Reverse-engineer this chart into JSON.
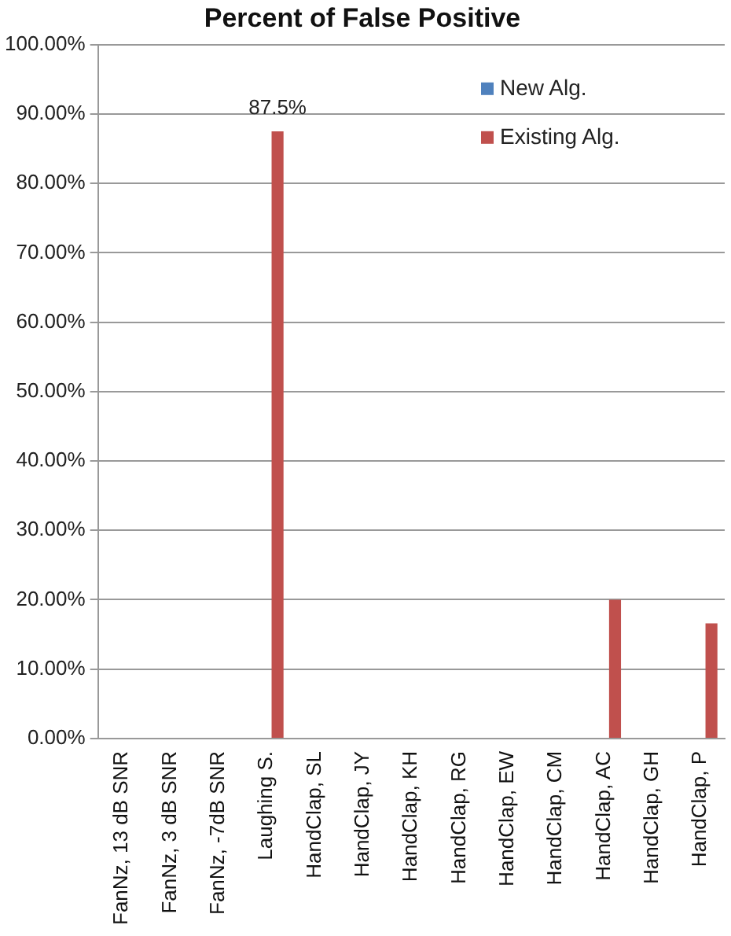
{
  "chart_data": {
    "type": "bar",
    "title": "Percent of False Positive",
    "categories": [
      "FanNz, 13 dB SNR",
      "FanNz, 3 dB SNR",
      "FanNz, -7dB SNR",
      "Laughing S.",
      "HandClap, SL",
      "HandClap, JY",
      "HandClap, KH",
      "HandClap, RG",
      "HandClap, EW",
      "HandClap, CM",
      "HandClap, AC",
      "HandClap, GH",
      "HandClap, P"
    ],
    "series": [
      {
        "name": "New Alg.",
        "color": "#4f81bd",
        "values": [
          0,
          0,
          0,
          0,
          0,
          0,
          0,
          0,
          0,
          0,
          0,
          0,
          0
        ]
      },
      {
        "name": "Existing Alg.",
        "color": "#c0504d",
        "values": [
          0,
          0,
          0,
          87.5,
          0,
          0,
          0,
          0,
          0,
          0,
          20,
          0,
          16.6
        ],
        "value_labels": [
          null,
          null,
          null,
          "87.5%",
          null,
          null,
          null,
          null,
          null,
          null,
          null,
          null,
          null
        ]
      }
    ],
    "ylim": [
      0,
      100
    ],
    "yticks": [
      {
        "value": 0,
        "label": "0.00%"
      },
      {
        "value": 10,
        "label": "10.00%"
      },
      {
        "value": 20,
        "label": "20.00%"
      },
      {
        "value": 30,
        "label": "30.00%"
      },
      {
        "value": 40,
        "label": "40.00%"
      },
      {
        "value": 50,
        "label": "50.00%"
      },
      {
        "value": 60,
        "label": "60.00%"
      },
      {
        "value": 70,
        "label": "70.00%"
      },
      {
        "value": 80,
        "label": "80.00%"
      },
      {
        "value": 90,
        "label": "90.00%"
      },
      {
        "value": 100,
        "label": "100.00%"
      }
    ],
    "grid": "y",
    "legend": "top right"
  }
}
